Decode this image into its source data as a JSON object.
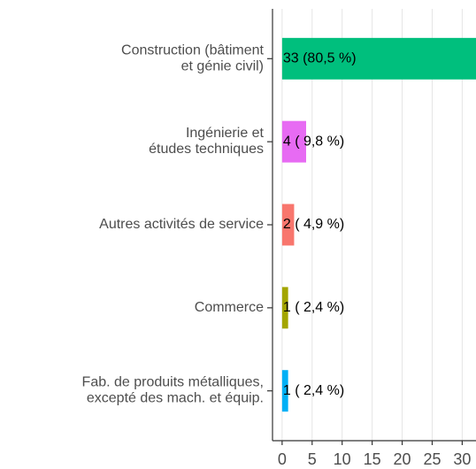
{
  "chart_data": {
    "type": "barh",
    "categories": [
      "Construction (bâtiment\net génie civil)",
      "Ingénierie et\nétudes techniques",
      "Autres activités de service",
      "Commerce",
      "Fab. de produits métalliques,\nexcepté des mach. et équip."
    ],
    "values": [
      33,
      4,
      2,
      1,
      1
    ],
    "value_labels": [
      "33 (80,5 %)",
      "4 ( 9,8 %)",
      "2 ( 4,9 %)",
      "1 ( 2,4 %)",
      "1 ( 2,4 %)"
    ],
    "colors": [
      "#00BF7D",
      "#E76BF3",
      "#F8766D",
      "#A3A500",
      "#00B0F6"
    ],
    "xlim": [
      -1.6,
      32.3
    ],
    "xticks": [
      0,
      5,
      10,
      15,
      20,
      25,
      30
    ],
    "grid": true
  }
}
